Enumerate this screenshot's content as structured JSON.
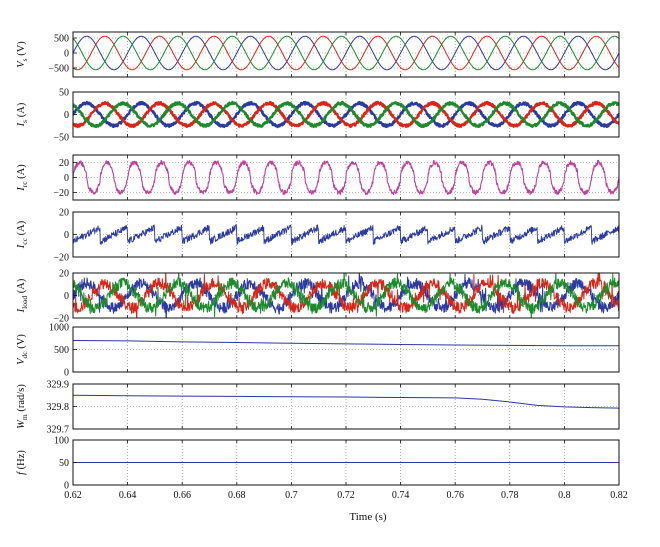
{
  "chart_data": {
    "type": "line",
    "xlabel": "Time (s)",
    "xlim": [
      0.62,
      0.82
    ],
    "xticks": [
      "0.62",
      "0.64",
      "0.66",
      "0.68",
      "0.7",
      "0.72",
      "0.74",
      "0.76",
      "0.78",
      "0.8",
      "0.82"
    ],
    "grid": "dotted",
    "panels": [
      {
        "id": "vs",
        "ylabel_main": "V",
        "ylabel_sub": "s",
        "ylabel_unit": "(V)",
        "ylim": [
          -800,
          700
        ],
        "yticks": [
          "500",
          "0",
          "−500"
        ],
        "ytick_values": [
          500,
          0,
          -500
        ],
        "kind": "three_phase",
        "amplitude": 560,
        "frequency_hz": 50,
        "colors": [
          "#2b3a9e",
          "#d62718",
          "#1d8a2b"
        ]
      },
      {
        "id": "is",
        "ylabel_main": "I",
        "ylabel_sub": "s",
        "ylabel_unit": "(A)",
        "ylim": [
          -50,
          50
        ],
        "yticks": [
          "50",
          "0",
          "−50"
        ],
        "ytick_values": [
          50,
          0,
          -50
        ],
        "kind": "three_phase_thick",
        "amplitude": 25,
        "frequency_hz": 50,
        "colors": [
          "#2b3a9e",
          "#d62718",
          "#1d8a2b"
        ]
      },
      {
        "id": "irc",
        "ylabel_main": "I",
        "ylabel_sub": "rc",
        "ylabel_unit": "(A)",
        "ylim": [
          -30,
          30
        ],
        "yticks": [
          "20",
          "0",
          "−20"
        ],
        "ytick_values": [
          20,
          0,
          -20
        ],
        "kind": "single_noisy",
        "amplitude": 20,
        "frequency_hz": 100,
        "colors": [
          "#c0409e"
        ]
      },
      {
        "id": "icc",
        "ylabel_main": "I",
        "ylabel_sub": "cc",
        "ylabel_unit": "(A)",
        "ylim": [
          -20,
          20
        ],
        "yticks": [
          "20",
          "0",
          "−20"
        ],
        "ytick_values": [
          20,
          0,
          -20
        ],
        "kind": "single_sawtooth",
        "amplitude": 7,
        "frequency_hz": 100,
        "colors": [
          "#2b3a9e"
        ]
      },
      {
        "id": "iload",
        "ylabel_main": "I",
        "ylabel_sub": "load",
        "ylabel_unit": "(A)",
        "ylim": [
          -20,
          20
        ],
        "yticks": [
          "20",
          "0",
          "−20"
        ],
        "ytick_values": [
          20,
          0,
          -20
        ],
        "kind": "three_phase_noisy",
        "amplitude": 11,
        "frequency_hz": 50,
        "colors": [
          "#2b3a9e",
          "#d62718",
          "#1d8a2b"
        ]
      },
      {
        "id": "vdc",
        "ylabel_main": "V",
        "ylabel_sub": "dc",
        "ylabel_unit": "(V)",
        "ylim": [
          0,
          1000
        ],
        "yticks": [
          "1000",
          "500",
          "0"
        ],
        "ytick_values": [
          1000,
          500,
          0
        ],
        "kind": "trend",
        "colors": [
          "#2b3a9e"
        ],
        "trend_x": [
          0.62,
          0.64,
          0.66,
          0.68,
          0.7,
          0.72,
          0.74,
          0.76,
          0.78,
          0.8,
          0.82
        ],
        "trend_y": [
          700,
          690,
          670,
          655,
          640,
          625,
          612,
          600,
          590,
          585,
          582
        ],
        "ref_line": 500
      },
      {
        "id": "wm",
        "ylabel_main": "W",
        "ylabel_sub": "m",
        "ylabel_unit": "(rad/s)",
        "ylim": [
          329.7,
          329.9
        ],
        "yticks": [
          "329.9",
          "329.8",
          "329.7"
        ],
        "ytick_values": [
          329.9,
          329.8,
          329.7
        ],
        "kind": "trend",
        "colors": [
          "#2b3a9e"
        ],
        "trend_x": [
          0.62,
          0.64,
          0.66,
          0.68,
          0.7,
          0.72,
          0.74,
          0.76,
          0.77,
          0.78,
          0.79,
          0.8,
          0.81,
          0.82
        ],
        "trend_y": [
          329.85,
          329.848,
          329.846,
          329.845,
          329.843,
          329.842,
          329.84,
          329.838,
          329.832,
          329.82,
          329.805,
          329.798,
          329.795,
          329.793
        ],
        "ref_line": 329.8
      },
      {
        "id": "f",
        "ylabel_main": "f",
        "ylabel_sub": "",
        "ylabel_unit": "(Hz)",
        "ylim": [
          0,
          100
        ],
        "yticks": [
          "100",
          "50",
          "0"
        ],
        "ytick_values": [
          100,
          50,
          0
        ],
        "kind": "trend",
        "colors": [
          "#2b3a9e"
        ],
        "trend_x": [
          0.62,
          0.82
        ],
        "trend_y": [
          50,
          50
        ],
        "ref_line": 50
      }
    ]
  }
}
